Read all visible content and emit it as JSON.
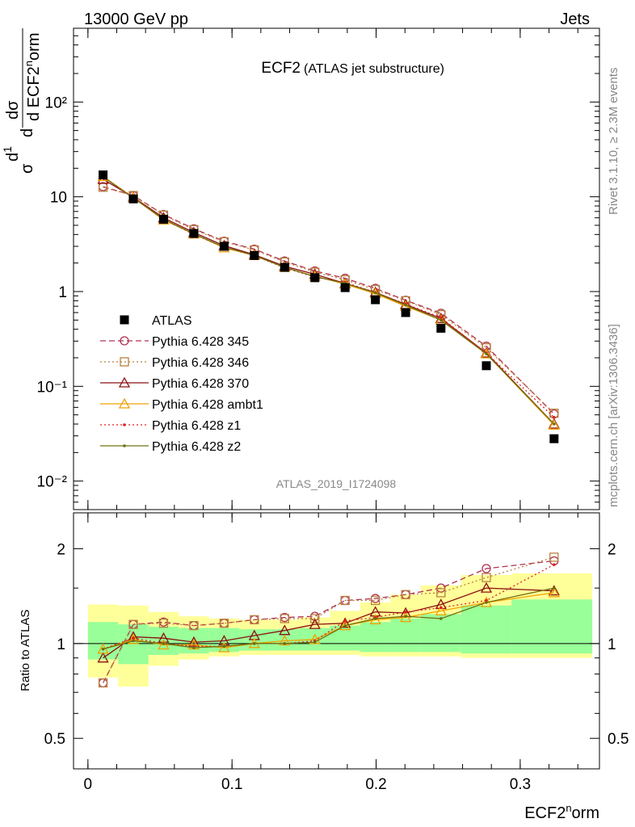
{
  "header": {
    "energy_label": "13000 GeV pp",
    "process_label": "Jets"
  },
  "side_labels": {
    "rivet": "Rivet 3.1.10, ≥ 2.3M events",
    "mcplots": "mcplots.cern.ch [arXiv:1306.3436]"
  },
  "chart_data": [
    {
      "type": "line",
      "panel": "main",
      "title": "ECF2",
      "subtitle": "(ATLAS jet substructure)",
      "ylabel": "1/σ dσ/d ECF2norm",
      "watermark": "ATLAS_2019_I1724098",
      "log_y": true,
      "ylim": [
        0.005,
        600
      ],
      "xlim": [
        -0.01,
        0.355
      ],
      "y_ticks": [
        {
          "value": 0.01,
          "label": "10⁻²"
        },
        {
          "value": 0.1,
          "label": "10⁻¹"
        },
        {
          "value": 1,
          "label": "1"
        },
        {
          "value": 10,
          "label": "10"
        },
        {
          "value": 100,
          "label": "10²"
        }
      ],
      "x": [
        0.0105,
        0.0315,
        0.0525,
        0.0735,
        0.0945,
        0.1155,
        0.1365,
        0.1575,
        0.1785,
        0.1995,
        0.2205,
        0.245,
        0.2765,
        0.3235
      ],
      "data": {
        "name": "ATLAS",
        "color": "#000000",
        "values": [
          17.0,
          9.5,
          5.8,
          4.1,
          3.0,
          2.4,
          1.8,
          1.4,
          1.1,
          0.82,
          0.6,
          0.41,
          0.165,
          0.028
        ]
      },
      "series": [
        {
          "name": "Pythia 6.428 345",
          "color": "#b03050",
          "dash": "7,4",
          "marker": "circle",
          "values": [
            12.8,
            10.3,
            6.5,
            4.6,
            3.4,
            2.8,
            2.1,
            1.65,
            1.38,
            1.08,
            0.81,
            0.59,
            0.265,
            0.051
          ]
        },
        {
          "name": "Pythia 6.428 346",
          "color": "#b88040",
          "dash": "2,3",
          "marker": "square",
          "values": [
            12.6,
            10.3,
            6.4,
            4.5,
            3.35,
            2.75,
            2.05,
            1.6,
            1.33,
            1.05,
            0.8,
            0.57,
            0.255,
            0.052
          ]
        },
        {
          "name": "Pythia 6.428 370",
          "color": "#8b1010",
          "dash": "",
          "marker": "triangle",
          "values": [
            15.3,
            9.9,
            6.0,
            4.2,
            3.05,
            2.45,
            1.85,
            1.52,
            1.22,
            0.98,
            0.73,
            0.52,
            0.225,
            0.04
          ]
        },
        {
          "name": "Pythia 6.428 ambt1",
          "color": "#f0a000",
          "dash": "",
          "marker": "triangle",
          "values": [
            16.4,
            9.8,
            5.7,
            4.05,
            2.9,
            2.4,
            1.8,
            1.45,
            1.2,
            0.95,
            0.7,
            0.5,
            0.22,
            0.039
          ]
        },
        {
          "name": "Pythia 6.428 z1",
          "color": "#e02020",
          "dash": "2,3",
          "marker": "dot",
          "values": [
            16.2,
            9.9,
            5.8,
            4.0,
            2.95,
            2.4,
            1.78,
            1.42,
            1.25,
            0.98,
            0.74,
            0.53,
            0.225,
            0.047
          ]
        },
        {
          "name": "Pythia 6.428 z2",
          "color": "#707010",
          "dash": "",
          "marker": "dot",
          "values": [
            16.3,
            9.7,
            5.8,
            4.05,
            2.95,
            2.4,
            1.8,
            1.44,
            1.22,
            0.97,
            0.72,
            0.5,
            0.22,
            0.04
          ]
        }
      ]
    },
    {
      "type": "line",
      "panel": "ratio",
      "ylabel": "Ratio to ATLAS",
      "xlabel": "ECF2norm",
      "log_y": true,
      "ylim": [
        0.4,
        2.6
      ],
      "y_ticks": [
        {
          "value": 0.5,
          "label": "0.5"
        },
        {
          "value": 1,
          "label": "1"
        },
        {
          "value": 2,
          "label": "2"
        }
      ],
      "x_ticks": [
        {
          "value": 0,
          "label": "0"
        },
        {
          "value": 0.1,
          "label": "0.1"
        },
        {
          "value": 0.2,
          "label": "0.2"
        },
        {
          "value": 0.3,
          "label": "0.3"
        }
      ],
      "bins": [
        0,
        0.021,
        0.042,
        0.063,
        0.084,
        0.105,
        0.126,
        0.147,
        0.168,
        0.189,
        0.21,
        0.231,
        0.259,
        0.294,
        0.35
      ],
      "band_inner_low": [
        0.89,
        0.86,
        0.92,
        0.93,
        0.94,
        0.95,
        0.95,
        0.95,
        0.95,
        0.94,
        0.94,
        0.94,
        0.93,
        0.93
      ],
      "band_inner_high": [
        1.17,
        1.15,
        1.13,
        1.12,
        1.12,
        1.11,
        1.11,
        1.12,
        1.14,
        1.17,
        1.2,
        1.24,
        1.32,
        1.38
      ],
      "band_outer_low": [
        0.78,
        0.73,
        0.85,
        0.89,
        0.91,
        0.92,
        0.92,
        0.92,
        0.92,
        0.91,
        0.91,
        0.91,
        0.9,
        0.9
      ],
      "band_outer_high": [
        1.33,
        1.32,
        1.26,
        1.22,
        1.2,
        1.19,
        1.19,
        1.21,
        1.27,
        1.35,
        1.43,
        1.53,
        1.65,
        1.67
      ],
      "band_inner_color": "#99ff99",
      "band_outer_color": "#ffff99",
      "x": [
        0.0105,
        0.0315,
        0.0525,
        0.0735,
        0.0945,
        0.1155,
        0.1365,
        0.1575,
        0.1785,
        0.1995,
        0.2205,
        0.245,
        0.2765,
        0.3235
      ],
      "series": [
        {
          "name": "Pythia 6.428 345",
          "color": "#b03050",
          "dash": "7,4",
          "marker": "circle",
          "values": [
            0.75,
            1.15,
            1.17,
            1.14,
            1.16,
            1.19,
            1.21,
            1.22,
            1.37,
            1.39,
            1.43,
            1.5,
            1.73,
            1.83
          ]
        },
        {
          "name": "Pythia 6.428 346",
          "color": "#b88040",
          "dash": "2,3",
          "marker": "square",
          "values": [
            0.75,
            1.15,
            1.16,
            1.14,
            1.16,
            1.19,
            1.2,
            1.2,
            1.37,
            1.37,
            1.43,
            1.45,
            1.62,
            1.88
          ]
        },
        {
          "name": "Pythia 6.428 370",
          "color": "#8b1010",
          "dash": "",
          "marker": "triangle",
          "values": [
            0.9,
            1.05,
            1.04,
            1.01,
            1.02,
            1.06,
            1.1,
            1.15,
            1.16,
            1.26,
            1.25,
            1.33,
            1.5,
            1.47
          ]
        },
        {
          "name": "Pythia 6.428 ambt1",
          "color": "#f0a000",
          "dash": "",
          "marker": "triangle",
          "values": [
            0.96,
            1.03,
            0.99,
            0.99,
            0.97,
            1.0,
            1.02,
            1.03,
            1.14,
            1.19,
            1.21,
            1.27,
            1.35,
            1.45
          ]
        },
        {
          "name": "Pythia 6.428 z1",
          "color": "#e02020",
          "dash": "2,3",
          "marker": "dot",
          "values": [
            0.96,
            1.04,
            1.0,
            0.98,
            0.98,
            1.0,
            1.0,
            1.02,
            1.18,
            1.21,
            1.26,
            1.3,
            1.37,
            1.78
          ]
        },
        {
          "name": "Pythia 6.428 z2",
          "color": "#707010",
          "dash": "",
          "marker": "dot",
          "values": [
            0.96,
            1.02,
            1.0,
            0.97,
            0.98,
            1.0,
            1.0,
            1.01,
            1.14,
            1.2,
            1.22,
            1.2,
            1.35,
            1.5
          ]
        }
      ]
    }
  ]
}
